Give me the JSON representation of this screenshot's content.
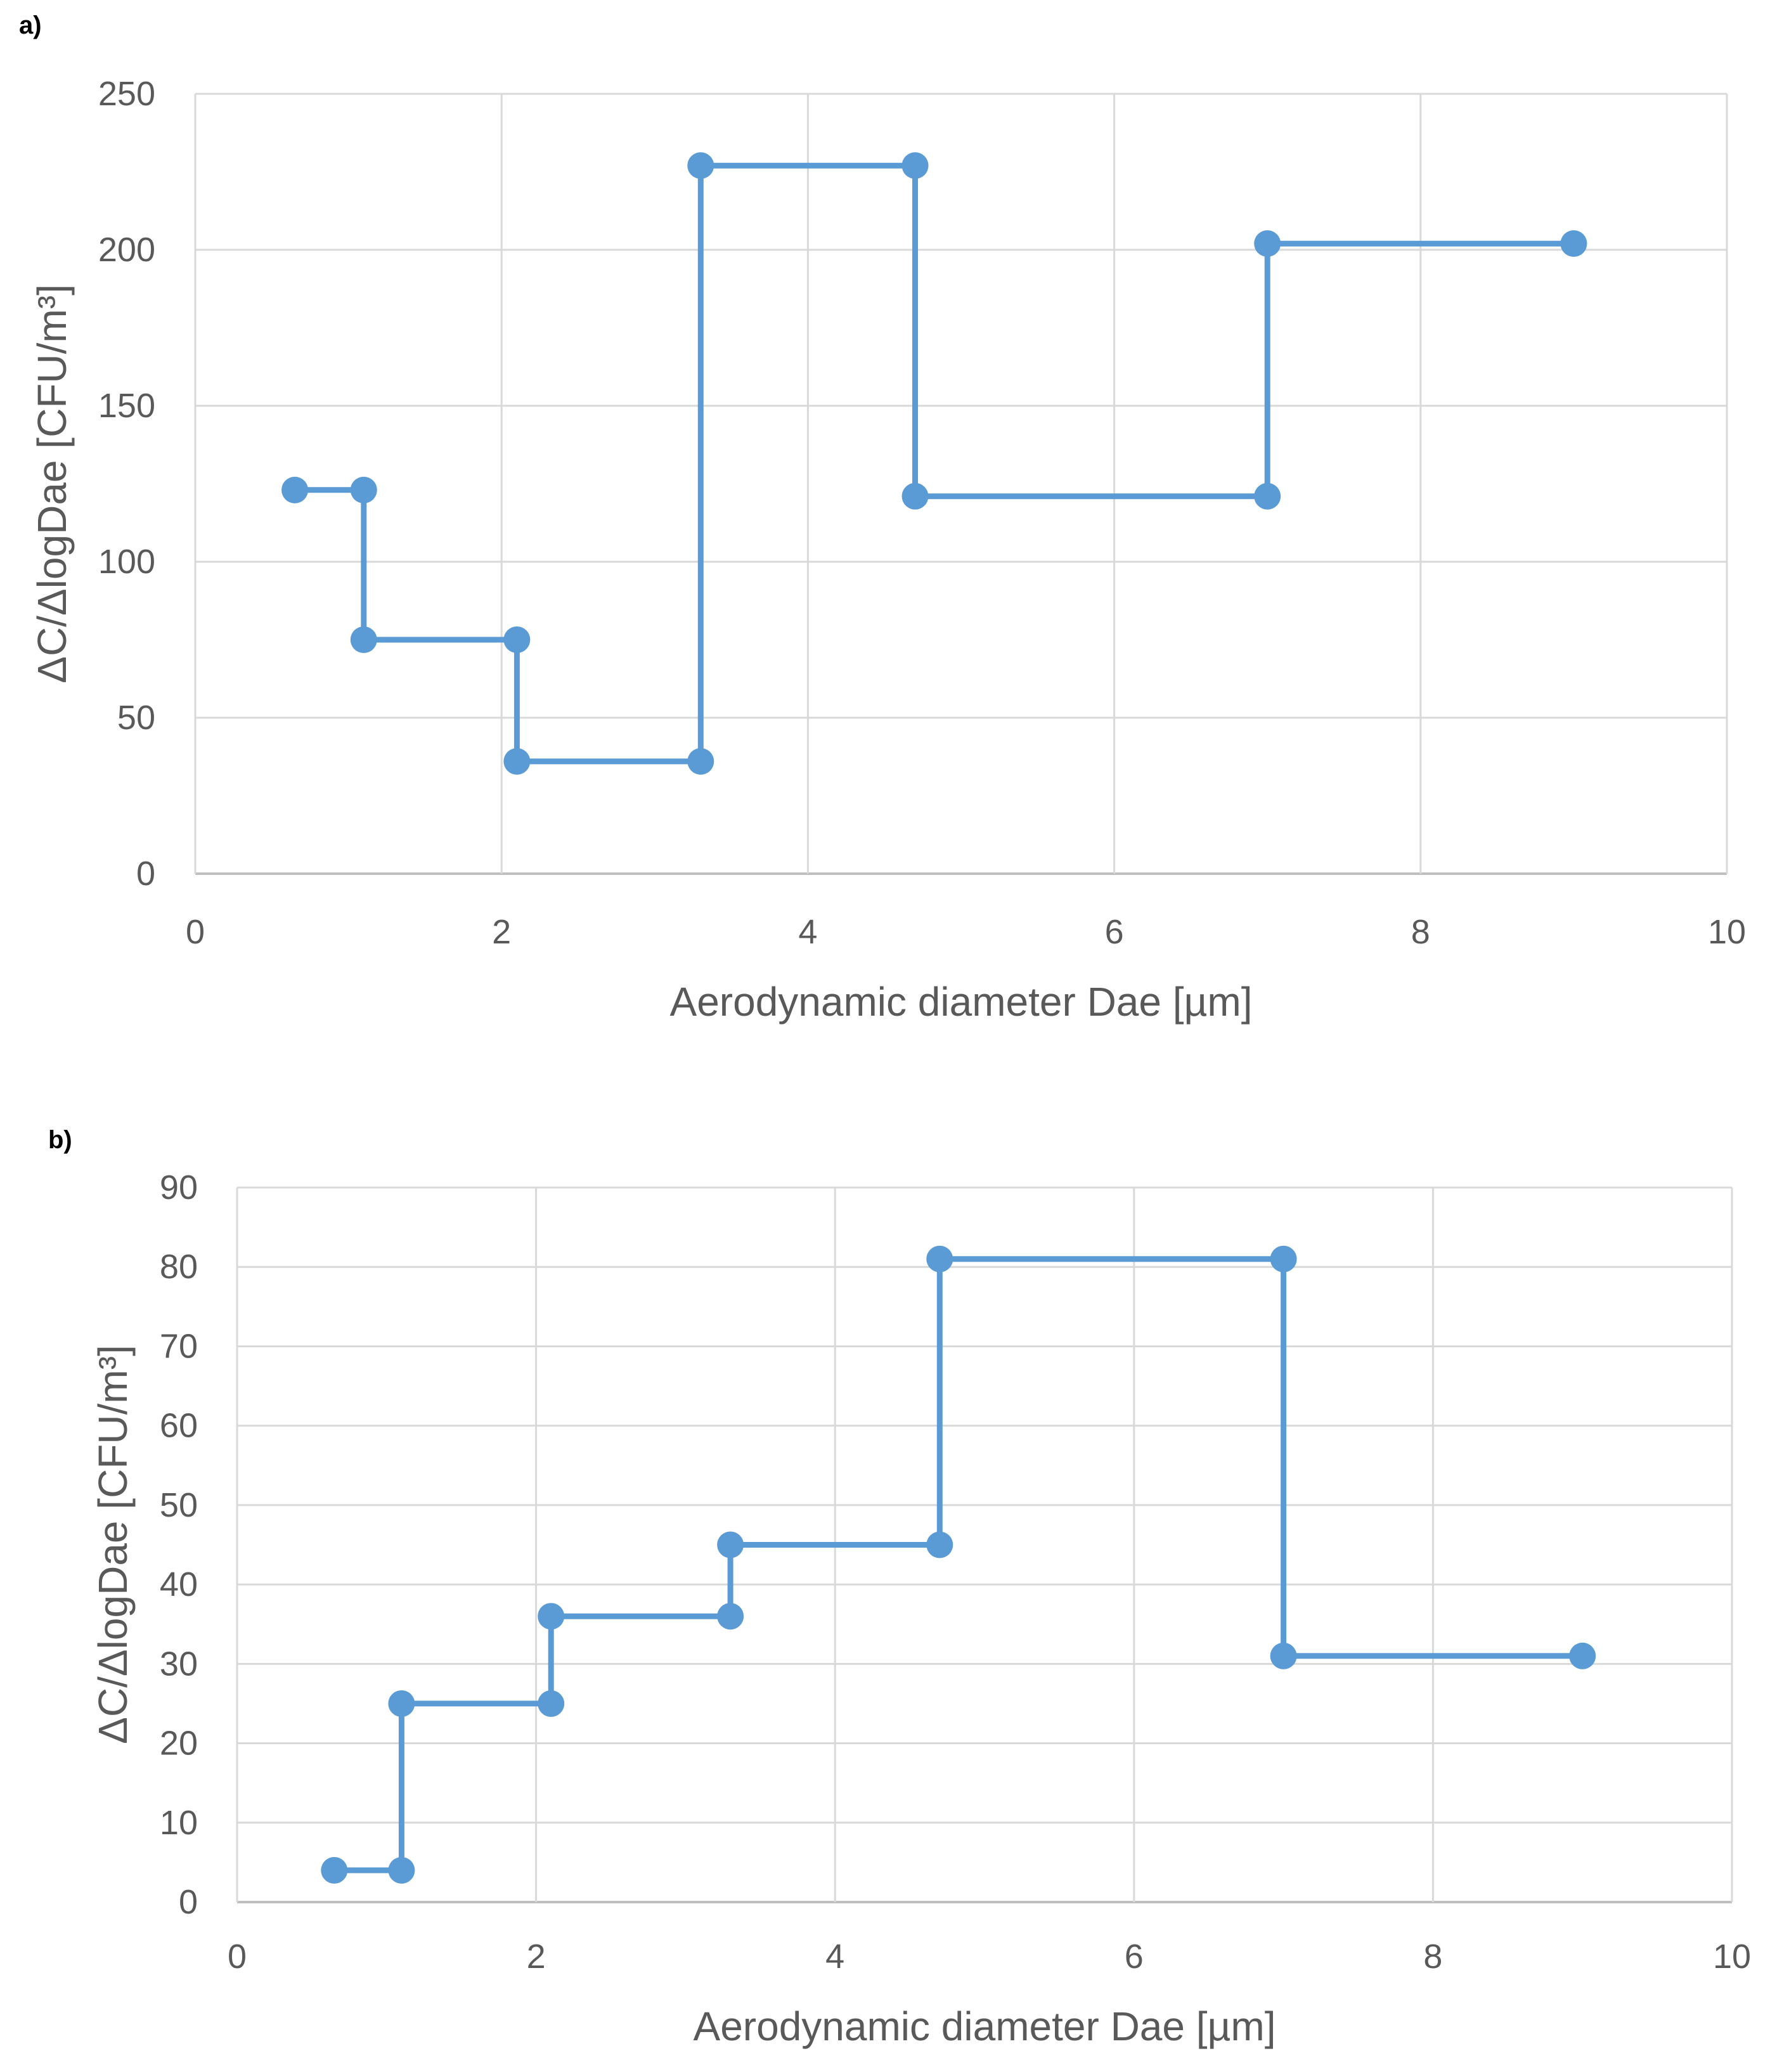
{
  "chart_data": [
    {
      "panel_label": "a)",
      "type": "line",
      "title": "",
      "xlabel": "Aerodynamic diameter Dae [µm]",
      "ylabel": "ΔC/ΔlogDae [CFU/m³]",
      "xlim": [
        0,
        10
      ],
      "ylim": [
        0,
        250
      ],
      "xticks": [
        0,
        2,
        4,
        6,
        8,
        10
      ],
      "yticks": [
        0,
        50,
        100,
        150,
        200,
        250
      ],
      "grid": true,
      "series": [
        {
          "name": "",
          "color": "#5B9BD5",
          "points": [
            [
              0.65,
              123
            ],
            [
              1.1,
              123
            ],
            [
              1.1,
              75
            ],
            [
              2.1,
              75
            ],
            [
              2.1,
              36
            ],
            [
              3.3,
              36
            ],
            [
              3.3,
              227
            ],
            [
              4.7,
              227
            ],
            [
              4.7,
              121
            ],
            [
              7.0,
              121
            ],
            [
              7.0,
              202
            ],
            [
              9.0,
              202
            ]
          ]
        }
      ]
    },
    {
      "panel_label": "b)",
      "type": "line",
      "title": "",
      "xlabel": "Aerodynamic diameter Dae [µm]",
      "ylabel": "ΔC/ΔlogDae [CFU/m³]",
      "xlim": [
        0,
        10
      ],
      "ylim": [
        0,
        90
      ],
      "xticks": [
        0,
        2,
        4,
        6,
        8,
        10
      ],
      "yticks": [
        0,
        10,
        20,
        30,
        40,
        50,
        60,
        70,
        80,
        90
      ],
      "grid": true,
      "series": [
        {
          "name": "",
          "color": "#5B9BD5",
          "points": [
            [
              0.65,
              4
            ],
            [
              1.1,
              4
            ],
            [
              1.1,
              25
            ],
            [
              2.1,
              25
            ],
            [
              2.1,
              36
            ],
            [
              3.3,
              36
            ],
            [
              3.3,
              45
            ],
            [
              4.7,
              45
            ],
            [
              4.7,
              81
            ],
            [
              7.0,
              81
            ],
            [
              7.0,
              31
            ],
            [
              9.0,
              31
            ]
          ]
        }
      ]
    }
  ]
}
